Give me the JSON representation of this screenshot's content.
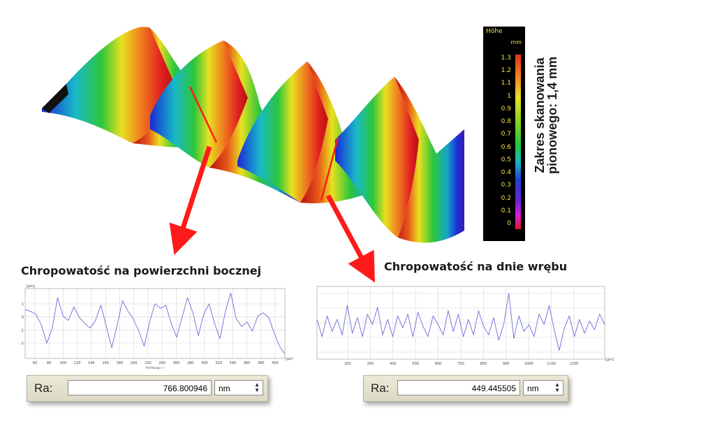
{
  "colorbar": {
    "title": "Höhe",
    "unit": "mm",
    "ticks": [
      "1.3",
      "1.2",
      "1.1",
      "1",
      "0.9",
      "0.8",
      "0.7",
      "0.6",
      "0.5",
      "0.4",
      "0.3",
      "0.2",
      "0.1",
      "0"
    ]
  },
  "vertical_caption": "Zakres skanowania pionowego: 1,4 mm",
  "captions": {
    "left": "Chropowatość na powierzchni bocznej",
    "right": "Chropowatość na dnie wrębu"
  },
  "profile_left": {
    "unit_y": "[µm]",
    "unit_x": "[µm]",
    "y_ticks": [
      "1",
      "0",
      "-1",
      "-2"
    ],
    "x_ticks": [
      "60",
      "80",
      "100",
      "120",
      "140",
      "160",
      "180",
      "200",
      "220",
      "240",
      "260",
      "280",
      "300",
      "320",
      "340",
      "360",
      "380",
      "400"
    ],
    "x_label": "Profillänge / l",
    "values": [
      0.6,
      0.5,
      0.3,
      -0.4,
      -1.6,
      -0.6,
      1.4,
      0.2,
      -0.1,
      0.8,
      0.1,
      -0.3,
      -0.6,
      -0.1,
      0.9,
      -0.5,
      -1.9,
      -0.4,
      1.2,
      0.5,
      0.0,
      -0.8,
      -1.8,
      -0.2,
      1.0,
      0.7,
      0.9,
      -0.3,
      -1.2,
      0.1,
      1.4,
      0.4,
      -1.1,
      0.3,
      1.0,
      -0.3,
      -1.3,
      0.5,
      1.7,
      0.0,
      -0.5,
      -0.2,
      -0.8,
      0.2,
      0.4,
      0.1,
      -0.9,
      -1.8,
      -2.3
    ]
  },
  "profile_right": {
    "unit_x": "[µm]",
    "x_ticks": [
      "200",
      "300",
      "400",
      "500",
      "600",
      "700",
      "800",
      "900",
      "1000",
      "1100",
      "1200"
    ],
    "values": [
      0.1,
      -0.9,
      0.3,
      -0.6,
      0.1,
      -0.8,
      0.9,
      -0.7,
      0.2,
      -0.9,
      0.4,
      -0.2,
      0.8,
      -0.8,
      0.1,
      -0.9,
      0.3,
      -0.4,
      0.4,
      -0.9,
      0.5,
      -0.3,
      -0.9,
      0.3,
      -0.2,
      -0.8,
      0.6,
      -0.6,
      0.4,
      -0.9,
      0.1,
      -0.8,
      0.6,
      -0.3,
      -0.8,
      0.2,
      -1.1,
      -0.2,
      1.6,
      -1.0,
      0.3,
      -0.6,
      -0.2,
      -0.9,
      0.4,
      -0.2,
      0.9,
      -0.5,
      -1.7,
      -0.4,
      0.3,
      -0.9,
      0.1,
      -0.7,
      0.0,
      -0.5,
      0.4,
      -0.2
    ]
  },
  "ra_left": {
    "label": "Ra:",
    "value": "766.800946",
    "unit": "nm"
  },
  "ra_right": {
    "label": "Ra:",
    "value": "449.445505",
    "unit": "nm"
  },
  "colors": {
    "arrow": "#ff1a1a",
    "profile_line": "#6a6ad8",
    "grid": "#d4d4d4"
  }
}
